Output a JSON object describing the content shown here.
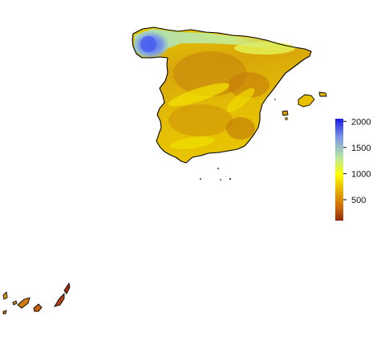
{
  "legend": {
    "min": 100,
    "max": 2050,
    "ticks": [
      {
        "value": 500,
        "label": "500"
      },
      {
        "value": 1000,
        "label": "1000"
      },
      {
        "value": 1500,
        "label": "1500"
      },
      {
        "value": 2000,
        "label": "2000"
      }
    ],
    "colors": [
      "#8b2a0e",
      "#c8650a",
      "#e8b000",
      "#ffff00",
      "#b8e6a0",
      "#7a96e6",
      "#1a1ae0"
    ]
  },
  "palette": {
    "terrain_low": "#c9870c",
    "terrain_mid": "#e6c200",
    "terrain_high": "#f3e600",
    "humid_north": "#9ad6b0",
    "very_humid": "#5a78e8",
    "coastline": "#000000"
  }
}
